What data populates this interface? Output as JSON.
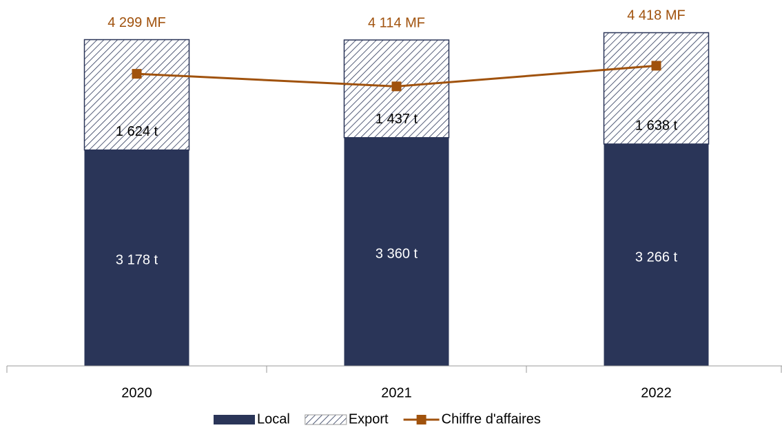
{
  "chart_data": {
    "type": "bar_line",
    "categories": [
      "2020",
      "2021",
      "2022"
    ],
    "series": [
      {
        "name": "Local",
        "type": "bar",
        "stack": true,
        "color": "#2a3558",
        "values": [
          3178,
          3360,
          3266
        ],
        "value_labels": [
          "3 178 t",
          "3 360 t",
          "3 266 t"
        ]
      },
      {
        "name": "Export",
        "type": "bar",
        "stack": true,
        "color": "#2a3558",
        "pattern": "hatch",
        "values": [
          1624,
          1437,
          1638
        ],
        "value_labels": [
          "1 624 t",
          "1 437 t",
          "1 638 t"
        ]
      },
      {
        "name": "Chiffre d'affaires",
        "type": "line",
        "axis": "y2",
        "color": "#a0520d",
        "values": [
          4299,
          4114,
          4418
        ],
        "value_labels": [
          "4 299 MF",
          "4 114 MF",
          "4 418 MF"
        ]
      }
    ],
    "ylim": [
      0,
      5000
    ],
    "y2lim": [
      0,
      5000
    ],
    "legend": "bottom"
  }
}
